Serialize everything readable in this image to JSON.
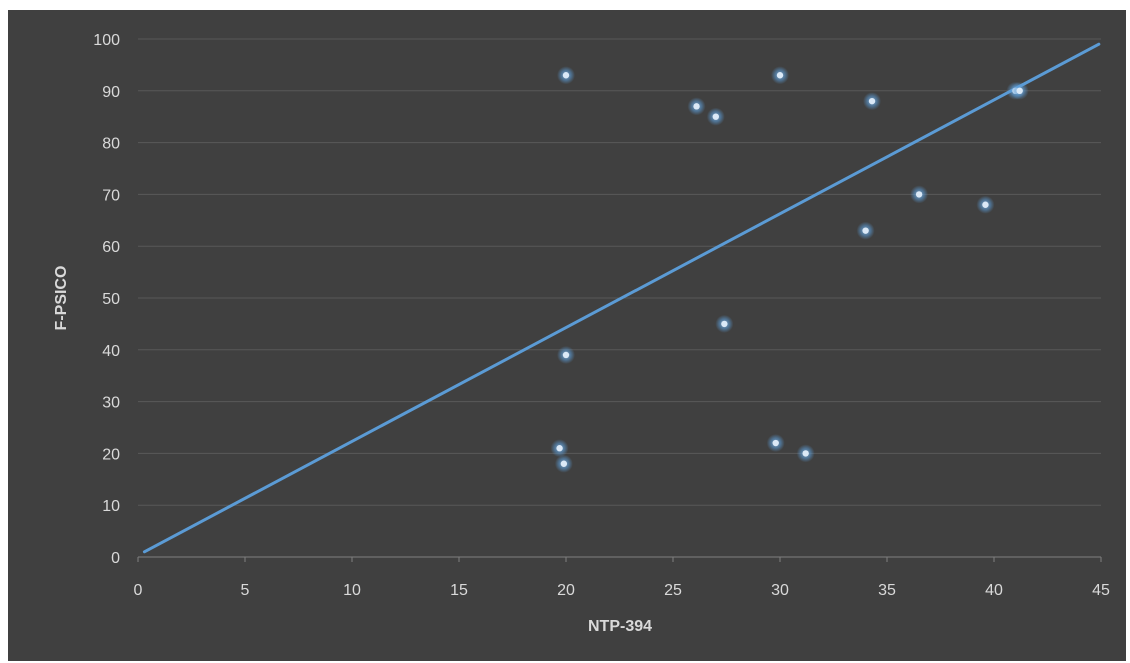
{
  "chart_data": {
    "type": "scatter",
    "title": "",
    "xlabel": "NTP-394",
    "ylabel": "F-PSICO",
    "xlim": [
      0,
      45
    ],
    "ylim": [
      0,
      100
    ],
    "x_ticks": [
      0,
      5,
      10,
      15,
      20,
      25,
      30,
      35,
      40,
      45
    ],
    "y_ticks": [
      0,
      10,
      20,
      30,
      40,
      50,
      60,
      70,
      80,
      90,
      100
    ],
    "grid": "horizontal",
    "legend": "none",
    "colors": {
      "background": "#404040",
      "gridline": "#595959",
      "text": "#d9d9d9",
      "point": "#5b9bd5",
      "trendline": "#5b9bd5"
    },
    "points": [
      {
        "x": 20.0,
        "y": 93
      },
      {
        "x": 30.0,
        "y": 93
      },
      {
        "x": 26.1,
        "y": 87
      },
      {
        "x": 27.0,
        "y": 85
      },
      {
        "x": 34.3,
        "y": 88
      },
      {
        "x": 41.0,
        "y": 90
      },
      {
        "x": 41.2,
        "y": 90
      },
      {
        "x": 36.5,
        "y": 70
      },
      {
        "x": 39.6,
        "y": 68
      },
      {
        "x": 34.0,
        "y": 63
      },
      {
        "x": 27.4,
        "y": 45
      },
      {
        "x": 20.0,
        "y": 39
      },
      {
        "x": 19.7,
        "y": 21
      },
      {
        "x": 19.9,
        "y": 18
      },
      {
        "x": 29.8,
        "y": 22
      },
      {
        "x": 31.2,
        "y": 20
      }
    ],
    "trendline": {
      "x": [
        0.3,
        44.9
      ],
      "y": [
        1,
        99
      ]
    }
  }
}
